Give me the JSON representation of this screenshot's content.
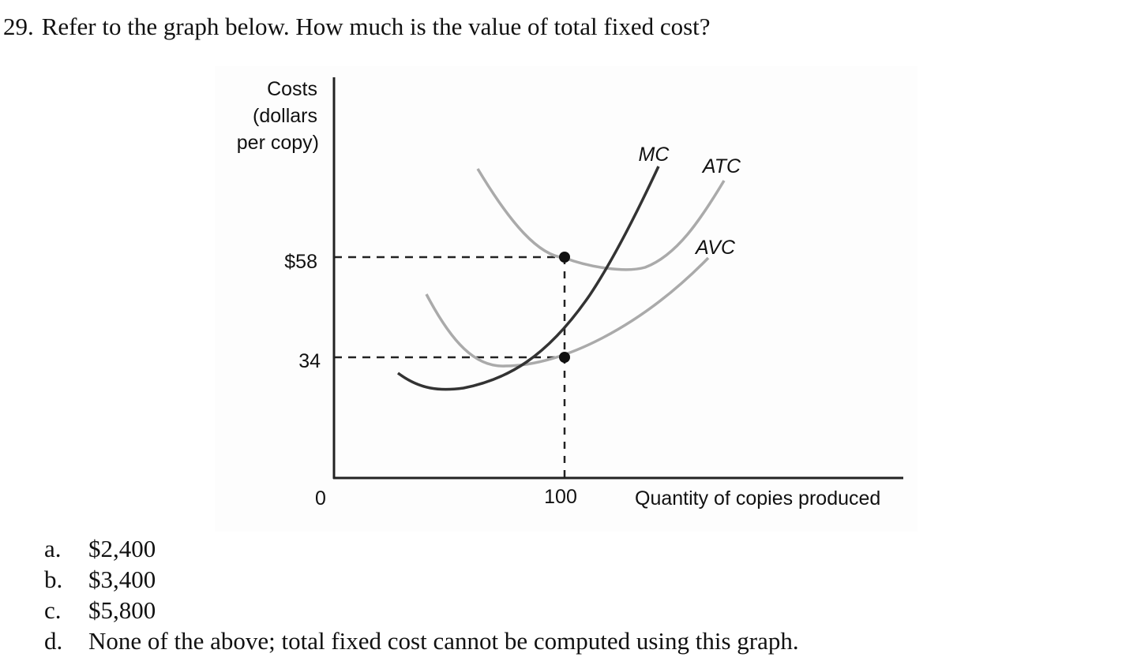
{
  "question": {
    "number": "29.",
    "text": "Refer to the graph below. How much is the value of total fixed cost?"
  },
  "chart_data": {
    "type": "line",
    "ylabel": [
      "Costs",
      "(dollars",
      "per copy)"
    ],
    "xlabel": "Quantity of copies produced",
    "origin_label": "0",
    "x_ticks": [
      {
        "value": 100,
        "label": "100"
      }
    ],
    "y_ticks": [
      {
        "value": 58,
        "label": "$58"
      },
      {
        "value": 34,
        "label": "34"
      }
    ],
    "series": [
      {
        "name": "MC",
        "color": "#333333"
      },
      {
        "name": "ATC",
        "color": "#aaaaaa"
      },
      {
        "name": "AVC",
        "color": "#aaaaaa"
      }
    ],
    "points": [
      {
        "x": 100,
        "y": 58,
        "series": "ATC"
      },
      {
        "x": 100,
        "y": 34,
        "series": "AVC"
      }
    ],
    "reference_lines": "dashed lines from the y-axis to the marked points and from the points down to the x-axis at 100"
  },
  "options": [
    {
      "letter": "a.",
      "text": "$2,400"
    },
    {
      "letter": "b.",
      "text": "$3,400"
    },
    {
      "letter": "c.",
      "text": "$5,800"
    },
    {
      "letter": "d.",
      "text": "None of the above; total fixed cost cannot be computed using this graph."
    }
  ]
}
